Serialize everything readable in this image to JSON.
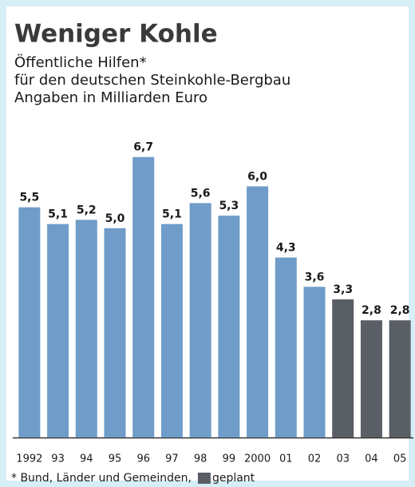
{
  "chart_data": {
    "type": "bar",
    "title": "Weniger Kohle",
    "subtitle": [
      "Öffentliche Hilfen*",
      "für den deutschen Steinkohle-Bergbau",
      "Angaben in Milliarden Euro"
    ],
    "categories": [
      "1992",
      "93",
      "94",
      "95",
      "96",
      "97",
      "98",
      "99",
      "2000",
      "01",
      "02",
      "03",
      "04",
      "05"
    ],
    "values": [
      5.5,
      5.1,
      5.2,
      5.0,
      6.7,
      5.1,
      5.6,
      5.3,
      6.0,
      4.3,
      3.6,
      3.3,
      2.8,
      2.8
    ],
    "value_labels": [
      "5,5",
      "5,1",
      "5,2",
      "5,0",
      "6,7",
      "5,1",
      "5,6",
      "5,3",
      "6,0",
      "4,3",
      "3,6",
      "3,3",
      "2,8",
      "2,8"
    ],
    "colors": [
      "#6f9cc8",
      "#6f9cc8",
      "#6f9cc8",
      "#6f9cc8",
      "#6f9cc8",
      "#6f9cc8",
      "#6f9cc8",
      "#6f9cc8",
      "#6f9cc8",
      "#6f9cc8",
      "#6f9cc8",
      "#5a5f66",
      "#5a5f66",
      "#5a5f66"
    ],
    "ylim": [
      0,
      7
    ],
    "footnote": "* Bund, Länder und Gemeinden,",
    "legend": {
      "label": "geplant",
      "color": "#5a5f66"
    }
  }
}
